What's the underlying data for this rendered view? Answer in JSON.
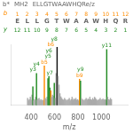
{
  "chart_data": {
    "type": "bar",
    "title": [
      "b*",
      "MH2",
      "ELLGTWAAWHQRe/z"
    ],
    "xlabel": "m/z",
    "x": [
      370,
      378,
      385,
      393,
      400,
      408,
      415,
      422,
      430,
      438,
      446,
      452,
      460,
      468,
      475,
      483,
      490,
      498,
      505,
      513,
      521,
      528,
      536,
      544,
      552,
      560,
      568,
      575,
      583,
      590,
      598,
      606,
      614,
      622,
      630,
      638,
      646,
      654,
      662,
      670,
      678,
      686,
      694,
      702,
      710,
      718,
      726,
      734,
      742,
      750,
      758,
      766,
      774,
      782,
      790,
      798,
      806,
      814,
      822,
      830,
      838,
      846,
      854,
      862,
      870,
      878,
      886,
      894,
      902,
      910,
      918,
      926,
      934,
      942,
      950,
      958,
      966,
      974,
      982,
      990,
      998,
      1006,
      1014,
      1022,
      1030,
      1038,
      1046,
      1054,
      1062,
      1070,
      1078,
      1086
    ],
    "values": [
      12,
      8,
      10,
      14,
      9,
      18,
      32,
      8,
      10,
      14,
      55,
      9,
      11,
      12,
      8,
      10,
      8,
      9,
      8,
      68,
      12,
      10,
      14,
      46,
      50,
      30,
      25,
      14,
      18,
      16,
      38,
      12,
      55,
      100,
      50,
      35,
      20,
      15,
      12,
      10,
      9,
      12,
      10,
      8,
      9,
      10,
      12,
      8,
      10,
      14,
      9,
      11,
      10,
      12,
      9,
      10,
      8,
      45,
      42,
      12,
      10,
      9,
      8,
      10,
      12,
      9,
      11,
      10,
      14,
      10,
      9,
      12,
      10,
      14,
      12,
      10,
      8,
      9,
      10,
      12,
      9,
      10,
      11,
      9,
      10,
      9,
      96,
      14,
      10,
      9,
      12,
      10
    ],
    "colors": [
      "#aaaaaa",
      "#aaaaaa",
      "#aaaaaa",
      "#aaaaaa",
      "#aaaaaa",
      "#aaaaaa",
      "#228B22",
      "#aaaaaa",
      "#aaaaaa",
      "#aaaaaa",
      "#228B22",
      "#aaaaaa",
      "#aaaaaa",
      "#aaaaaa",
      "#aaaaaa",
      "#aaaaaa",
      "#aaaaaa",
      "#aaaaaa",
      "#aaaaaa",
      "#FF8C00",
      "#aaaaaa",
      "#aaaaaa",
      "#aaaaaa",
      "#228B22",
      "#228B22",
      "#228B22",
      "#FF8C00",
      "#aaaaaa",
      "#aaaaaa",
      "#aaaaaa",
      "#228B22",
      "#aaaaaa",
      "#aaaaaa",
      "#111111",
      "#aaaaaa",
      "#aaaaaa",
      "#aaaaaa",
      "#aaaaaa",
      "#aaaaaa",
      "#aaaaaa",
      "#aaaaaa",
      "#aaaaaa",
      "#aaaaaa",
      "#aaaaaa",
      "#aaaaaa",
      "#aaaaaa",
      "#aaaaaa",
      "#aaaaaa",
      "#aaaaaa",
      "#aaaaaa",
      "#aaaaaa",
      "#aaaaaa",
      "#aaaaaa",
      "#aaaaaa",
      "#aaaaaa",
      "#aaaaaa",
      "#aaaaaa",
      "#FF8C00",
      "#228B22",
      "#aaaaaa",
      "#aaaaaa",
      "#aaaaaa",
      "#aaaaaa",
      "#aaaaaa",
      "#aaaaaa",
      "#aaaaaa",
      "#aaaaaa",
      "#aaaaaa",
      "#aaaaaa",
      "#aaaaaa",
      "#aaaaaa",
      "#aaaaaa",
      "#aaaaaa",
      "#aaaaaa",
      "#aaaaaa",
      "#aaaaaa",
      "#aaaaaa",
      "#aaaaaa",
      "#aaaaaa",
      "#aaaaaa",
      "#aaaaaa",
      "#aaaaaa",
      "#aaaaaa",
      "#aaaaaa",
      "#aaaaaa",
      "#aaaaaa",
      "#228B22",
      "#aaaaaa",
      "#aaaaaa",
      "#aaaaaa",
      "#aaaaaa",
      "#aaaaaa"
    ],
    "annotations": [
      {
        "x": 415,
        "y": 32,
        "label": "y3",
        "color": "#228B22"
      },
      {
        "x": 446,
        "y": 55,
        "label": "y4",
        "color": "#228B22"
      },
      {
        "x": 513,
        "y": 68,
        "label": "b5",
        "color": "#FF8C00"
      },
      {
        "x": 544,
        "y": 46,
        "label": "y5",
        "color": "#228B22"
      },
      {
        "x": 552,
        "y": 50,
        "label": "y6",
        "color": "#228B22"
      },
      {
        "x": 560,
        "y": 30,
        "label": "y7",
        "color": "#228B22"
      },
      {
        "x": 568,
        "y": 25,
        "label": "b6",
        "color": "#FF8C00"
      },
      {
        "x": 598,
        "y": 38,
        "label": "y8",
        "color": "#228B22"
      },
      {
        "x": 814,
        "y": 45,
        "label": "b9",
        "color": "#FF8C00"
      },
      {
        "x": 822,
        "y": 42,
        "label": "y9",
        "color": "#228B22"
      },
      {
        "x": 1046,
        "y": 96,
        "label": "y11",
        "color": "#228B22"
      }
    ],
    "residues": [
      "E",
      "L",
      "L",
      "G",
      "T",
      "W",
      "A",
      "A",
      "W",
      "H",
      "Q",
      "R"
    ],
    "ion_rows": [
      {
        "name": "b",
        "color": "#FF8C00",
        "numbers": [
          "1",
          "2",
          "3",
          "4",
          "5",
          "6",
          "7",
          "8",
          "9",
          "10",
          "11",
          "12"
        ]
      },
      {
        "name": "y",
        "color": "#228B22",
        "numbers": [
          "12",
          "11",
          "10",
          "9",
          "8",
          "7",
          "6",
          "5",
          "4",
          "3",
          "2",
          "1"
        ]
      }
    ],
    "xlim": [
      350,
      1100
    ],
    "ylim": [
      0,
      105
    ],
    "xticks": [
      400,
      600,
      800,
      1000
    ],
    "grid": false,
    "tick_labels": "x"
  }
}
